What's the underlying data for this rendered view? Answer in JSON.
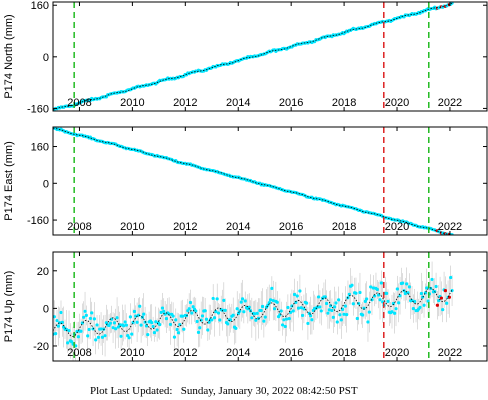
{
  "footer": {
    "prefix": "Plot Last Updated:",
    "timestamp": "Sunday, January 30, 2022 08:42:50 PST"
  },
  "chart_data": [
    {
      "type": "scatter",
      "ylabel": "P174 North (mm)",
      "xlim": [
        2007.0,
        2023.4
      ],
      "ylim": [
        -168,
        170
      ],
      "yticks": [
        -160,
        0,
        160
      ],
      "xticks": [
        2008,
        2010,
        2012,
        2014,
        2016,
        2018,
        2020,
        2022
      ],
      "series": [
        {
          "x_start": 2007.0,
          "x_end": 2022.08,
          "y_start": -165,
          "y_end": 165,
          "seasonal_amplitude": 2,
          "noise": 2,
          "error_bar": 4
        }
      ],
      "vlines": [
        {
          "x": 2007.8,
          "color": "#22bb22",
          "style": "dashed"
        },
        {
          "x": 2019.5,
          "color": "#dd2222",
          "style": "dashed"
        },
        {
          "x": 2021.2,
          "color": "#22bb22",
          "style": "dashed"
        }
      ],
      "colors": {
        "points": "#00e5ff",
        "model": "#000000",
        "flagged": "#dd0000",
        "errors": "#9e9e9e"
      }
    },
    {
      "type": "scatter",
      "ylabel": "P174 East (mm)",
      "xlim": [
        2007.0,
        2023.4
      ],
      "ylim": [
        -225,
        245
      ],
      "yticks": [
        -160,
        0,
        160
      ],
      "xticks": [
        2008,
        2010,
        2012,
        2014,
        2016,
        2018,
        2020,
        2022
      ],
      "series": [
        {
          "x_start": 2007.0,
          "x_end": 2022.08,
          "y_start": 240,
          "y_end": -225,
          "seasonal_amplitude": 2,
          "noise": 2,
          "error_bar": 5
        }
      ],
      "vlines": [
        {
          "x": 2007.8,
          "color": "#22bb22",
          "style": "dashed"
        },
        {
          "x": 2019.5,
          "color": "#dd2222",
          "style": "dashed"
        },
        {
          "x": 2021.2,
          "color": "#22bb22",
          "style": "dashed"
        }
      ],
      "colors": {
        "points": "#00e5ff",
        "model": "#000000",
        "flagged": "#dd0000",
        "errors": "#9e9e9e"
      }
    },
    {
      "type": "scatter",
      "ylabel": "P174 Up (mm)",
      "xlim": [
        2007.0,
        2023.4
      ],
      "ylim": [
        -28,
        30
      ],
      "yticks": [
        -20,
        0,
        20
      ],
      "xticks": [
        2008,
        2010,
        2012,
        2014,
        2016,
        2018,
        2020,
        2022
      ],
      "series": [
        {
          "x_start": 2007.0,
          "x_end": 2022.08,
          "y_start": -12,
          "y_end": 8,
          "seasonal_amplitude": 4,
          "noise": 5,
          "error_bar": 8
        }
      ],
      "vlines": [
        {
          "x": 2007.8,
          "color": "#22bb22",
          "style": "dashed"
        },
        {
          "x": 2019.5,
          "color": "#dd2222",
          "style": "dashed"
        },
        {
          "x": 2021.2,
          "color": "#22bb22",
          "style": "dashed"
        }
      ],
      "colors": {
        "points": "#00e5ff",
        "model": "#000000",
        "flagged": "#dd0000",
        "errors": "#9e9e9e"
      }
    }
  ]
}
